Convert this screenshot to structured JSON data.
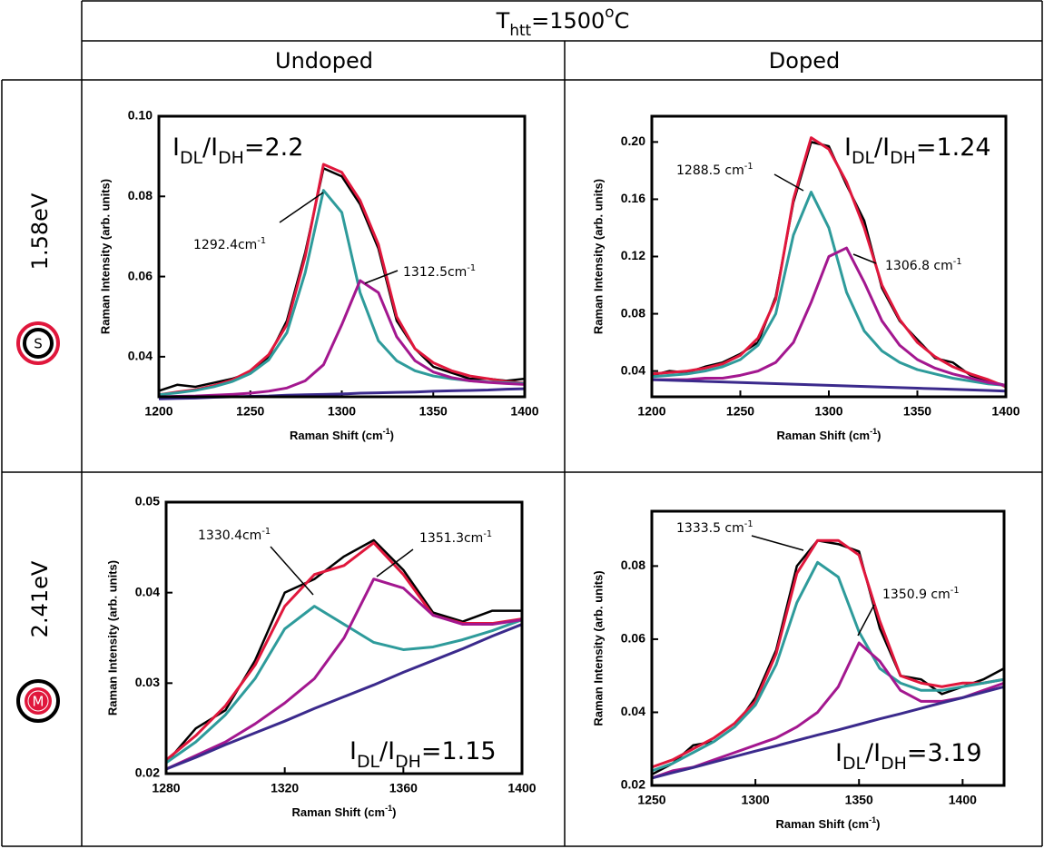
{
  "table": {
    "title": [
      "T",
      {
        "sub": "htt"
      },
      "=1500",
      {
        "sup": "o"
      },
      "C"
    ],
    "columns": [
      "Undoped",
      "Doped"
    ],
    "rows": [
      "1.58eV",
      "2.41eV"
    ],
    "icons": [
      "S",
      "M"
    ]
  },
  "chart_data": [
    {
      "type": "line",
      "xlabel": [
        "Raman Shift (cm",
        {
          "sup": "-1"
        },
        ")"
      ],
      "ylabel": "Raman Intensity (arb. units)",
      "x": [
        1200,
        1210,
        1220,
        1230,
        1240,
        1250,
        1260,
        1270,
        1280,
        1290,
        1300,
        1310,
        1320,
        1330,
        1340,
        1350,
        1360,
        1370,
        1380,
        1390,
        1400
      ],
      "xlim": [
        1200,
        1400
      ],
      "xticks": [
        1200,
        1250,
        1300,
        1350,
        1400
      ],
      "ylim": [
        0.03,
        0.1
      ],
      "yticks": [
        0.04,
        0.06,
        0.08,
        {
          "value": 0.1,
          "label": "0.10"
        }
      ],
      "series": [
        {
          "color": "#000000",
          "values": [
            0.0315,
            0.033,
            0.0325,
            0.0335,
            0.0345,
            0.036,
            0.04,
            0.049,
            0.066,
            0.087,
            0.085,
            0.078,
            0.067,
            0.049,
            0.042,
            0.0375,
            0.036,
            0.0345,
            0.0345,
            0.034,
            0.0345
          ]
        },
        {
          "color": "#e0173c",
          "values": [
            0.0305,
            0.0312,
            0.0318,
            0.0328,
            0.0342,
            0.0365,
            0.0405,
            0.048,
            0.065,
            0.088,
            0.086,
            0.079,
            0.068,
            0.05,
            0.042,
            0.0385,
            0.0365,
            0.0352,
            0.0345,
            0.0338,
            0.0334
          ]
        },
        {
          "color": "#2e9b9b",
          "values": [
            0.0305,
            0.031,
            0.0316,
            0.0325,
            0.0338,
            0.0358,
            0.0392,
            0.046,
            0.061,
            0.0815,
            0.076,
            0.056,
            0.044,
            0.039,
            0.0365,
            0.0352,
            0.0345,
            0.034,
            0.0337,
            0.0335,
            0.0333
          ]
        },
        {
          "color": "#a3178f",
          "values": [
            0.03,
            0.0301,
            0.0302,
            0.0304,
            0.0306,
            0.0309,
            0.0314,
            0.0322,
            0.034,
            0.038,
            0.048,
            0.059,
            0.056,
            0.045,
            0.039,
            0.0362,
            0.0348,
            0.034,
            0.0336,
            0.0333,
            0.0331
          ]
        },
        {
          "color": "#3b2a8c",
          "values": [
            0.0295,
            0.0296,
            0.0297,
            0.0299,
            0.03,
            0.0301,
            0.0302,
            0.0304,
            0.0305,
            0.0306,
            0.0307,
            0.0309,
            0.031,
            0.0311,
            0.0312,
            0.0314,
            0.0315,
            0.0316,
            0.0317,
            0.0319,
            0.032
          ]
        }
      ],
      "ratio": [
        "I",
        {
          "sub": "DL"
        },
        "/I",
        {
          "sub": "DH"
        },
        "=2.2"
      ],
      "peaks": [
        [
          "1292.4cm",
          {
            "sup": "-1"
          }
        ],
        [
          "1312.5cm",
          {
            "sup": "-1"
          }
        ]
      ]
    },
    {
      "type": "line",
      "xlabel": [
        "Raman Shift (cm",
        {
          "sup": "-1"
        },
        ")"
      ],
      "ylabel": "Raman Intensity (arb. units)",
      "x": [
        1200,
        1210,
        1220,
        1230,
        1240,
        1250,
        1260,
        1270,
        1280,
        1290,
        1300,
        1310,
        1320,
        1330,
        1340,
        1350,
        1360,
        1370,
        1380,
        1390,
        1400
      ],
      "xlim": [
        1200,
        1400
      ],
      "xticks": [
        1200,
        1250,
        1300,
        1350,
        1400
      ],
      "ylim": [
        0.022,
        0.218
      ],
      "yticks": [
        0.04,
        0.08,
        0.12,
        0.16,
        {
          "value": 0.2,
          "label": "0.20"
        }
      ],
      "series": [
        {
          "color": "#000000",
          "values": [
            0.037,
            0.04,
            0.039,
            0.043,
            0.046,
            0.052,
            0.06,
            0.092,
            0.158,
            0.2,
            0.197,
            0.17,
            0.145,
            0.098,
            0.075,
            0.062,
            0.049,
            0.046,
            0.037,
            0.033,
            0.03
          ]
        },
        {
          "color": "#e0173c",
          "values": [
            0.038,
            0.039,
            0.04,
            0.042,
            0.045,
            0.051,
            0.063,
            0.09,
            0.16,
            0.203,
            0.195,
            0.172,
            0.14,
            0.1,
            0.076,
            0.06,
            0.05,
            0.043,
            0.038,
            0.034,
            0.029
          ]
        },
        {
          "color": "#2e9b9b",
          "values": [
            0.036,
            0.037,
            0.038,
            0.04,
            0.043,
            0.048,
            0.058,
            0.08,
            0.135,
            0.165,
            0.14,
            0.095,
            0.068,
            0.054,
            0.046,
            0.041,
            0.038,
            0.035,
            0.033,
            0.031,
            0.03
          ]
        },
        {
          "color": "#a3178f",
          "values": [
            0.034,
            0.034,
            0.034,
            0.035,
            0.035,
            0.037,
            0.04,
            0.046,
            0.06,
            0.088,
            0.12,
            0.126,
            0.102,
            0.075,
            0.058,
            0.048,
            0.042,
            0.038,
            0.035,
            0.032,
            0.03
          ]
        },
        {
          "color": "#3b2a8c",
          "values": [
            0.034,
            0.0336,
            0.0332,
            0.0328,
            0.0324,
            0.032,
            0.0316,
            0.0312,
            0.0308,
            0.0304,
            0.03,
            0.0296,
            0.0292,
            0.0288,
            0.0284,
            0.028,
            0.0276,
            0.0272,
            0.0268,
            0.0264,
            0.026
          ]
        }
      ],
      "ratio": [
        "I",
        {
          "sub": "DL"
        },
        "/I",
        {
          "sub": "DH"
        },
        "=1.24"
      ],
      "peaks": [
        [
          "1288.5 cm",
          {
            "sup": "-1"
          }
        ],
        [
          "1306.8 cm",
          {
            "sup": "-1"
          }
        ]
      ]
    },
    {
      "type": "line",
      "xlabel": [
        "Raman Shift (cm",
        {
          "sup": "-1"
        },
        ")"
      ],
      "ylabel": "Raman Intensity (arb. units)",
      "x": [
        1280,
        1290,
        1300,
        1310,
        1320,
        1330,
        1340,
        1350,
        1360,
        1370,
        1380,
        1390,
        1400
      ],
      "xlim": [
        1280,
        1400
      ],
      "xticks": [
        1280,
        1320,
        1360,
        1400
      ],
      "ylim": [
        0.02,
        0.05
      ],
      "yticks": [
        0.02,
        0.03,
        0.04,
        0.05
      ],
      "series": [
        {
          "color": "#000000",
          "values": [
            0.0212,
            0.025,
            0.027,
            0.0325,
            0.04,
            0.0415,
            0.044,
            0.0458,
            0.0425,
            0.0378,
            0.0368,
            0.038,
            0.038
          ]
        },
        {
          "color": "#e0173c",
          "values": [
            0.0215,
            0.0242,
            0.0275,
            0.032,
            0.0385,
            0.042,
            0.043,
            0.0455,
            0.042,
            0.0375,
            0.0366,
            0.0366,
            0.0371
          ]
        },
        {
          "color": "#2e9b9b",
          "values": [
            0.0212,
            0.0235,
            0.0265,
            0.0305,
            0.036,
            0.0385,
            0.0365,
            0.0345,
            0.0337,
            0.034,
            0.0348,
            0.0358,
            0.037
          ]
        },
        {
          "color": "#a3178f",
          "values": [
            0.0205,
            0.022,
            0.0235,
            0.0255,
            0.0278,
            0.0305,
            0.035,
            0.0415,
            0.0405,
            0.0375,
            0.0365,
            0.0365,
            0.037
          ]
        },
        {
          "color": "#3b2a8c",
          "values": [
            0.0205,
            0.0218,
            0.0232,
            0.0245,
            0.0258,
            0.0272,
            0.0285,
            0.0298,
            0.0312,
            0.0325,
            0.0338,
            0.0352,
            0.0365
          ]
        }
      ],
      "ratio": [
        "I",
        {
          "sub": "DL"
        },
        "/I",
        {
          "sub": "DH"
        },
        "=1.15"
      ],
      "peaks": [
        [
          "1330.4cm",
          {
            "sup": "-1"
          }
        ],
        [
          "1351.3cm",
          {
            "sup": "-1"
          }
        ]
      ]
    },
    {
      "type": "line",
      "xlabel": [
        "Raman Shift (cm",
        {
          "sup": "-1"
        },
        ")"
      ],
      "ylabel": "Raman Intensity (arb. units)",
      "x": [
        1250,
        1260,
        1270,
        1280,
        1290,
        1300,
        1310,
        1320,
        1330,
        1340,
        1350,
        1360,
        1370,
        1380,
        1390,
        1400,
        1410,
        1420
      ],
      "xlim": [
        1250,
        1420
      ],
      "xticks": [
        1250,
        1300,
        1350,
        1400
      ],
      "ylim": [
        0.02,
        0.095
      ],
      "yticks": [
        0.02,
        0.04,
        0.06,
        0.08
      ],
      "series": [
        {
          "color": "#000000",
          "values": [
            0.023,
            0.026,
            0.031,
            0.032,
            0.036,
            0.044,
            0.057,
            0.08,
            0.087,
            0.086,
            0.084,
            0.063,
            0.05,
            0.049,
            0.045,
            0.047,
            0.049,
            0.052
          ]
        },
        {
          "color": "#e0173c",
          "values": [
            0.025,
            0.027,
            0.03,
            0.033,
            0.037,
            0.043,
            0.056,
            0.078,
            0.087,
            0.087,
            0.083,
            0.065,
            0.05,
            0.048,
            0.047,
            0.048,
            0.048,
            0.049
          ]
        },
        {
          "color": "#2e9b9b",
          "values": [
            0.024,
            0.026,
            0.029,
            0.032,
            0.036,
            0.042,
            0.053,
            0.07,
            0.081,
            0.077,
            0.062,
            0.052,
            0.048,
            0.046,
            0.046,
            0.047,
            0.048,
            0.049
          ]
        },
        {
          "color": "#a3178f",
          "values": [
            0.022,
            0.024,
            0.025,
            0.027,
            0.029,
            0.031,
            0.033,
            0.036,
            0.04,
            0.047,
            0.059,
            0.054,
            0.046,
            0.043,
            0.043,
            0.044,
            0.046,
            0.048
          ]
        },
        {
          "color": "#3b2a8c",
          "values": [
            0.022,
            0.0235,
            0.0249,
            0.0264,
            0.0279,
            0.0294,
            0.0308,
            0.0323,
            0.0338,
            0.0352,
            0.0367,
            0.0382,
            0.0396,
            0.0411,
            0.0426,
            0.044,
            0.0455,
            0.047
          ]
        }
      ],
      "ratio": [
        "I",
        {
          "sub": "DL"
        },
        "/I",
        {
          "sub": "DH"
        },
        "=3.19"
      ],
      "peaks": [
        [
          "1333.5 cm",
          {
            "sup": "-1"
          }
        ],
        [
          "1350.9 cm",
          {
            "sup": "-1"
          }
        ]
      ]
    }
  ]
}
